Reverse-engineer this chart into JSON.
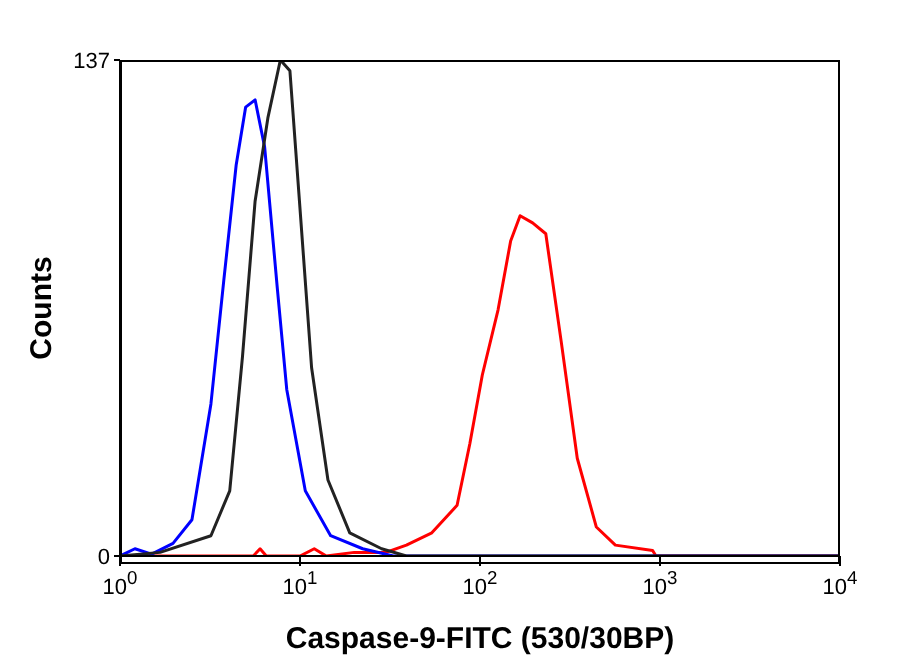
{
  "chart_data": {
    "type": "line",
    "xlabel": "Caspase-9-FITC (530/30BP)",
    "ylabel": "Counts",
    "log": "x",
    "grid": false,
    "legend": false,
    "marker": "none",
    "line_style": "solid",
    "xlim": [
      1,
      10000
    ],
    "xticks": [
      {
        "value": 1,
        "label": "10$^{0}$"
      },
      {
        "value": 10,
        "label": "10$^{1}$"
      },
      {
        "value": 100,
        "label": "10$^{2}$"
      },
      {
        "value": 1000,
        "label": "10$^{3}$"
      },
      {
        "value": 10000,
        "label": "10$^{4}$"
      }
    ],
    "ylim": [
      0,
      137
    ],
    "yticks": [
      0,
      137
    ],
    "series": [
      {
        "color": "#ff0000",
        "x": [
          1,
          3,
          5.5,
          6,
          6.5,
          10,
          12,
          14,
          20,
          30,
          39,
          54,
          74.6,
          87.8,
          103,
          126,
          148,
          167,
          196,
          232,
          283,
          347,
          443,
          565,
          910,
          950,
          10000
        ],
        "values": [
          0,
          0,
          0,
          2,
          0,
          0,
          2,
          0,
          1,
          1,
          3,
          6.4,
          14,
          31,
          50,
          68,
          87,
          94,
          92,
          89,
          59,
          27,
          8,
          3,
          1.5,
          0,
          0
        ]
      },
      {
        "color": "#0000ff",
        "x": [
          1,
          1.21,
          1.5,
          1.97,
          2.51,
          3.2,
          3.77,
          4.42,
          4.99,
          5.63,
          6.36,
          7.48,
          8.44,
          10.7,
          14.8,
          22.3,
          33,
          10000
        ],
        "values": [
          0,
          2,
          0.5,
          3.5,
          10,
          42,
          76,
          108,
          124,
          126,
          113,
          74,
          46,
          18,
          5.6,
          2,
          0,
          0
        ]
      },
      {
        "color": "#222222",
        "x": [
          1,
          1.67,
          3.2,
          4.07,
          4.79,
          5.63,
          6.63,
          7.78,
          8.79,
          9.93,
          11.6,
          14.3,
          18.9,
          28.4,
          39,
          10000
        ],
        "values": [
          0,
          1,
          5.6,
          18,
          55,
          98,
          121,
          137,
          134,
          98,
          52,
          21,
          6.4,
          2,
          0,
          0
        ]
      }
    ]
  }
}
